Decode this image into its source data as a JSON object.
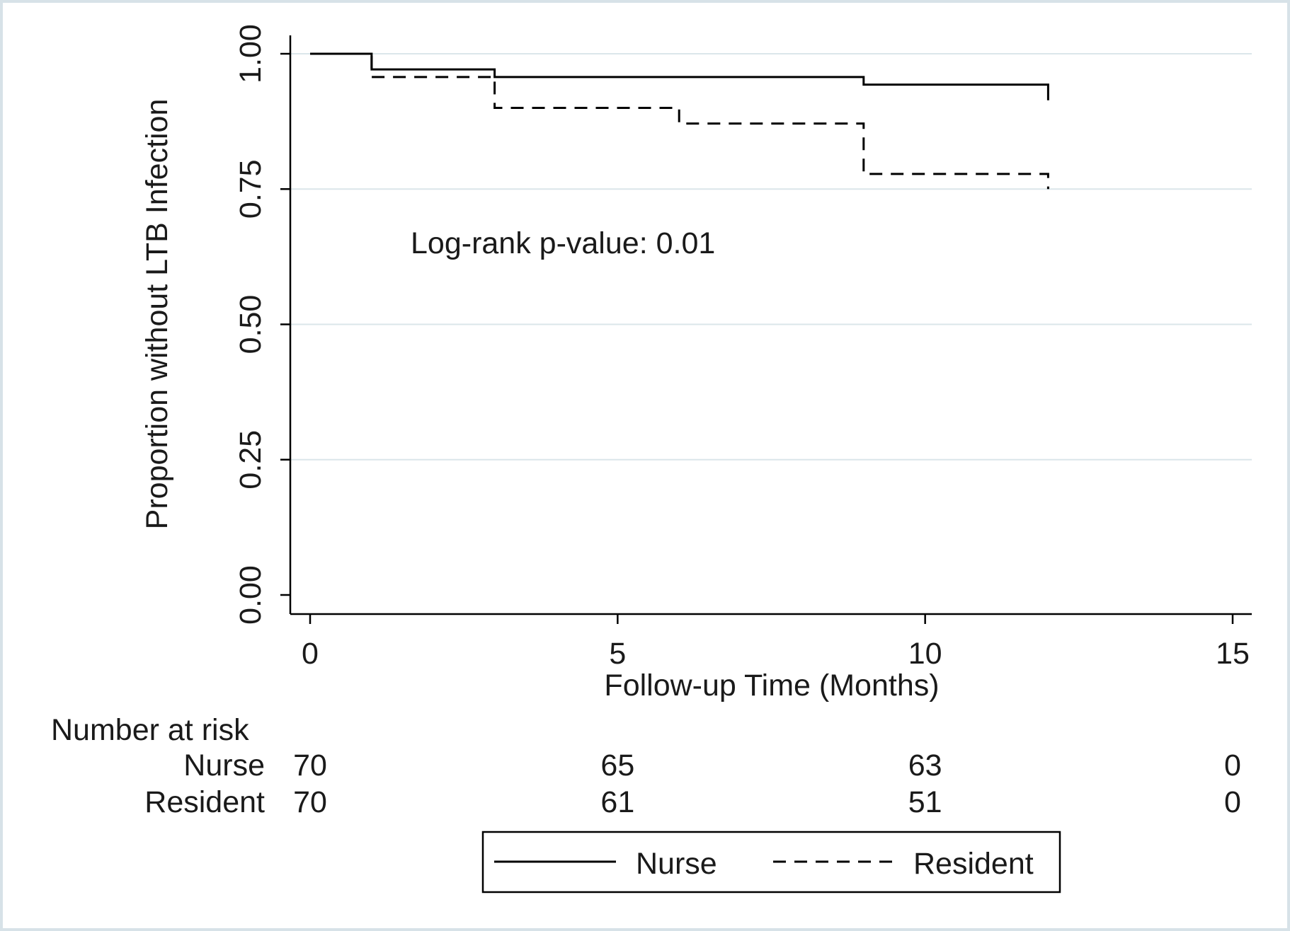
{
  "chart_data": {
    "type": "line",
    "title": "",
    "xlabel": "Follow-up Time (Months)",
    "ylabel": "Proportion without LTB Infection",
    "xlim": [
      0,
      15
    ],
    "ylim": [
      0,
      1
    ],
    "x_ticks": [
      0,
      5,
      10,
      15
    ],
    "x_tick_labels": [
      "0",
      "5",
      "10",
      "15"
    ],
    "y_ticks": [
      0,
      0.25,
      0.5,
      0.75,
      1
    ],
    "y_tick_labels": [
      "0.00",
      "0.25",
      "0.50",
      "0.75",
      "1.00"
    ],
    "grid": true,
    "legend_position": "bottom",
    "annotation": "Log-rank p-value: 0.01",
    "series": [
      {
        "name": "Nurse",
        "style": "solid",
        "color": "#000000",
        "step": true,
        "x": [
          0,
          1,
          3,
          9,
          12
        ],
        "y": [
          1.0,
          0.971,
          0.957,
          0.943,
          0.914
        ]
      },
      {
        "name": "Resident",
        "style": "dashed",
        "color": "#000000",
        "step": true,
        "x": [
          0,
          1,
          3,
          6,
          9,
          12
        ],
        "y": [
          1.0,
          0.957,
          0.9,
          0.871,
          0.778,
          0.75
        ]
      }
    ],
    "risk_table": {
      "header": "Number at risk",
      "times": [
        0,
        5,
        10,
        15
      ],
      "rows": [
        {
          "label": "Nurse",
          "counts": [
            "70",
            "65",
            "63",
            "0"
          ]
        },
        {
          "label": "Resident",
          "counts": [
            "70",
            "61",
            "51",
            "0"
          ]
        }
      ]
    }
  }
}
